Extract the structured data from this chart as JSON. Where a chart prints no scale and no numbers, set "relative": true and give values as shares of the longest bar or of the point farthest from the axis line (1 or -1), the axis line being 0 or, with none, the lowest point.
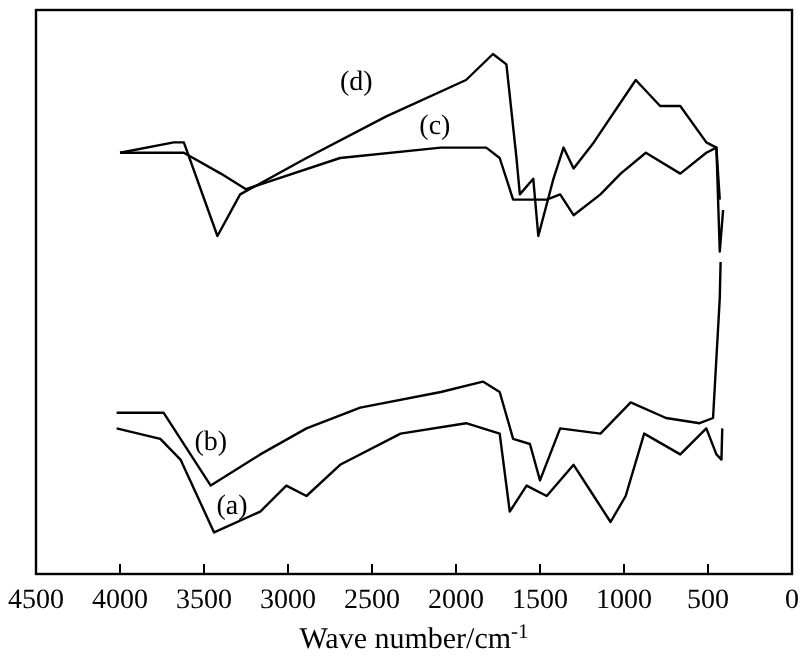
{
  "chart_data": {
    "type": "line",
    "xlabel": "Wave number/cm$^{-1}$",
    "xlim": [
      4500,
      0
    ],
    "xticks": [
      4500,
      4000,
      3500,
      3000,
      2500,
      2000,
      1500,
      1000,
      500,
      0
    ],
    "relative": true,
    "tick_labels": "x",
    "grid": false,
    "marker": "none",
    "line_style": "solid",
    "series": [
      {
        "name": "(a)",
        "color": "#000000",
        "x": [
          4020,
          3760,
          3640,
          3440,
          3165,
          3010,
          2890,
          2690,
          2330,
          1940,
          1740,
          1680,
          1580,
          1460,
          1300,
          1180,
          1080,
          990,
          880,
          665,
          510,
          450,
          420,
          415
        ],
        "values": [
          0.28,
          0.26,
          0.22,
          0.08,
          0.12,
          0.17,
          0.15,
          0.21,
          0.27,
          0.29,
          0.27,
          0.12,
          0.17,
          0.15,
          0.21,
          0.15,
          0.1,
          0.15,
          0.27,
          0.23,
          0.28,
          0.23,
          0.22,
          0.28
        ]
      },
      {
        "name": "(b)",
        "color": "#000000",
        "x": [
          4020,
          3740,
          3460,
          3165,
          2890,
          2570,
          2090,
          1840,
          1740,
          1660,
          1560,
          1500,
          1380,
          1140,
          960,
          750,
          550,
          470,
          430,
          425
        ],
        "values": [
          0.31,
          0.31,
          0.17,
          0.23,
          0.28,
          0.32,
          0.35,
          0.37,
          0.35,
          0.26,
          0.25,
          0.18,
          0.28,
          0.27,
          0.33,
          0.3,
          0.29,
          0.3,
          0.53,
          0.6
        ]
      },
      {
        "name": "(c)",
        "color": "#000000",
        "x": [
          4000,
          3620,
          3400,
          3250,
          2690,
          2090,
          1820,
          1740,
          1660,
          1460,
          1380,
          1300,
          1140,
          1020,
          870,
          665,
          510,
          450,
          430
        ],
        "values": [
          0.81,
          0.81,
          0.77,
          0.74,
          0.8,
          0.82,
          0.82,
          0.8,
          0.72,
          0.72,
          0.73,
          0.69,
          0.73,
          0.77,
          0.81,
          0.77,
          0.81,
          0.82,
          0.72
        ]
      },
      {
        "name": "(d)",
        "color": "#000000",
        "x": [
          4000,
          3680,
          3620,
          3420,
          3285,
          2890,
          2415,
          1940,
          1780,
          1700,
          1640,
          1620,
          1540,
          1510,
          1420,
          1360,
          1300,
          1180,
          930,
          785,
          665,
          510,
          450,
          430,
          410
        ],
        "values": [
          0.81,
          0.83,
          0.83,
          0.65,
          0.73,
          0.8,
          0.88,
          0.95,
          1,
          0.98,
          0.8,
          0.73,
          0.76,
          0.65,
          0.76,
          0.82,
          0.78,
          0.83,
          0.95,
          0.9,
          0.9,
          0.83,
          0.82,
          0.62,
          0.7
        ]
      }
    ]
  }
}
